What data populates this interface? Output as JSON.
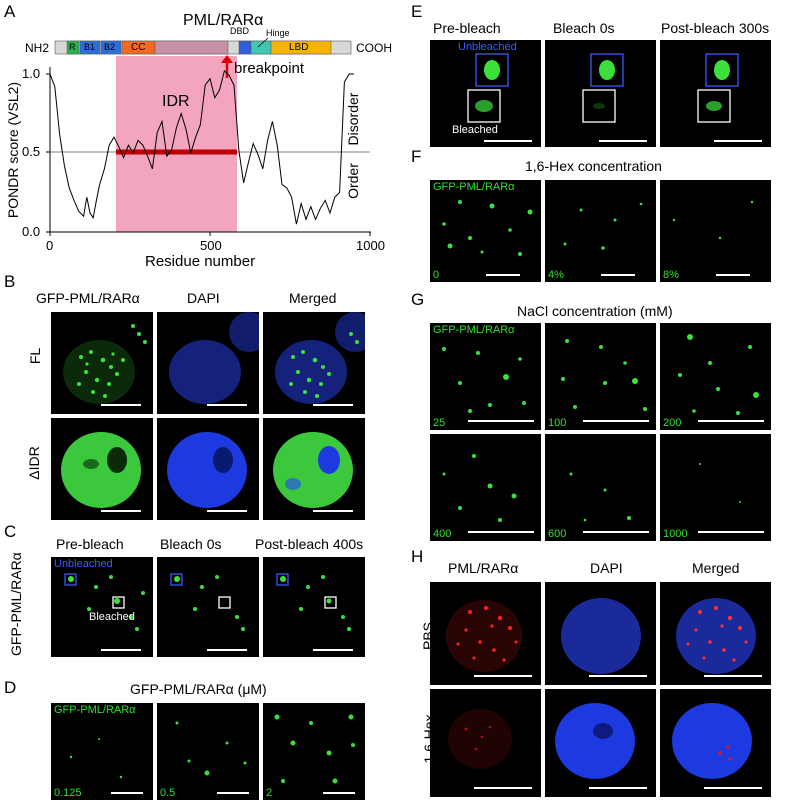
{
  "panels": {
    "A": "A",
    "B": "B",
    "C": "C",
    "D": "D",
    "E": "E",
    "F": "F",
    "G": "G",
    "H": "H"
  },
  "panelA": {
    "title": "PML/RARα",
    "nterm": "NH2",
    "cterm": "COOH",
    "domains": {
      "R": "R",
      "B1": "B1",
      "B2": "B2",
      "CC": "CC",
      "DBD": "DBD",
      "Hinge": "Hinge",
      "LBD": "LBD"
    },
    "idr_label": "IDR",
    "breakpoint_label": "breakpoint",
    "ylabel": "PONDR score (VSL2)",
    "xlabel": "Residue number",
    "disorder_label": "Disorder",
    "order_label": "Order",
    "xticks": [
      "0",
      "500",
      "1000"
    ],
    "yticks": [
      "0.0",
      "0.5",
      "1.0"
    ],
    "colors": {
      "idr": "#f3a4bf",
      "threshold": "#c00000",
      "curve": "#000000"
    }
  },
  "chart_data": {
    "type": "line",
    "title": "",
    "xlabel": "Residue number",
    "ylabel": "PONDR score (VSL2)",
    "xlim": [
      0,
      1000
    ],
    "ylim": [
      0,
      1.05
    ],
    "idr_region": [
      185,
      580
    ],
    "threshold": 0.5,
    "series": [
      {
        "x": [
          0,
          15,
          30,
          45,
          60,
          75,
          90,
          105,
          115,
          125,
          135,
          145,
          155,
          170,
          185,
          200,
          215,
          230,
          245,
          260,
          275,
          290,
          305,
          320,
          335,
          350,
          365,
          380,
          395,
          410,
          425,
          440,
          455,
          470,
          485,
          500,
          515,
          530,
          545,
          560,
          575,
          590,
          605,
          620,
          635,
          650,
          665,
          680,
          695,
          710,
          725,
          740,
          755,
          770,
          785,
          800,
          815,
          830,
          845,
          860,
          875,
          890,
          905,
          920,
          935,
          950
        ],
        "y": [
          1.0,
          0.92,
          0.62,
          0.42,
          0.28,
          0.2,
          0.13,
          0.1,
          0.22,
          0.12,
          0.09,
          0.2,
          0.3,
          0.4,
          0.55,
          0.6,
          0.54,
          0.47,
          0.55,
          0.5,
          0.58,
          0.55,
          0.48,
          0.4,
          0.63,
          0.7,
          0.48,
          0.52,
          0.66,
          0.75,
          0.65,
          0.5,
          0.6,
          0.68,
          0.93,
          0.97,
          0.85,
          0.9,
          1.02,
          0.99,
          0.93,
          0.52,
          0.31,
          0.44,
          0.56,
          0.49,
          0.4,
          0.58,
          0.7,
          0.55,
          0.3,
          0.28,
          0.22,
          0.05,
          0.18,
          0.08,
          0.16,
          0.08,
          0.15,
          0.2,
          0.12,
          0.22,
          0.25,
          0.95,
          1.0,
          1.0
        ]
      }
    ]
  },
  "panelB": {
    "col_titles": [
      "GFP-PML/RARα",
      "DAPI",
      "Merged"
    ],
    "row_labels": [
      "FL",
      "ΔIDR"
    ]
  },
  "panelC": {
    "side_label": "GFP-PML/RARα",
    "col_titles": [
      "Pre-bleach",
      "Bleach 0s",
      "Post-bleach 400s"
    ],
    "unbleached": "Unbleached",
    "bleached": "Bleached"
  },
  "panelD": {
    "title": "GFP-PML/RARα (μM)",
    "inset": "GFP-PML/RARα",
    "concentrations": [
      "0.125",
      "0.5",
      "2"
    ]
  },
  "panelE": {
    "col_titles": [
      "Pre-bleach",
      "Bleach 0s",
      "Post-bleach 300s"
    ],
    "unbleached": "Unbleached",
    "bleached": "Bleached"
  },
  "panelF": {
    "title": "1,6-Hex concentration",
    "inset": "GFP-PML/RARα",
    "concentrations": [
      "0",
      "4%",
      "8%"
    ]
  },
  "panelG": {
    "title": "NaCl concentration (mM)",
    "inset": "GFP-PML/RARα",
    "concentrations": [
      "25",
      "100",
      "200",
      "400",
      "600",
      "1000"
    ]
  },
  "panelH": {
    "col_titles": [
      "PML/RARα",
      "DAPI",
      "Merged"
    ],
    "row_labels": [
      "PBS",
      "1,6-Hex"
    ]
  }
}
